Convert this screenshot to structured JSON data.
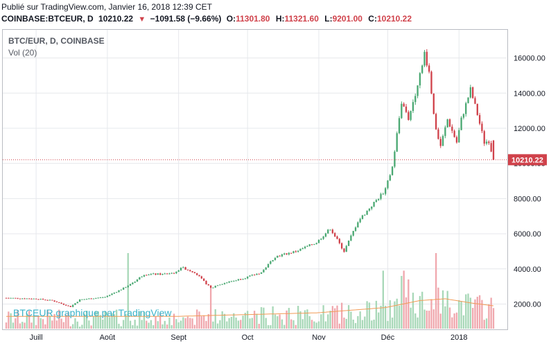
{
  "header": {
    "published": "Publié sur TradingView.com, Janvier 16, 2018 12:39 CET",
    "symbol": "COINBASE:BTCEUR, D",
    "last": "10210.22",
    "change_icon": "triangle-down-icon",
    "change": "−1091.58 (−9.66%)",
    "o_label": "O:",
    "o_value": "11301.80",
    "h_label": "H:",
    "h_value": "11321.60",
    "l_label": "L:",
    "l_value": "9201.00",
    "c_label": "C:",
    "c_value": "10210.22"
  },
  "legend": {
    "series": "BTC/EUR, D, COINBASE",
    "volume": "Vol (20)"
  },
  "watermark": "BTCEUR graphique par TradingView",
  "colors": {
    "up": "#4aa872",
    "down": "#d0424b",
    "up_volume": "#a8d8b8",
    "down_volume": "#f0a8ae",
    "volume_ma": "#f29a55",
    "grid": "#e6e8ec",
    "price_line": "#d0424b",
    "price_label_bg": "#d0424b"
  },
  "chart_data": {
    "type": "candlestick",
    "y_axis": {
      "min": 600,
      "max": 17600,
      "ticks": [
        2000,
        4000,
        6000,
        8000,
        10000,
        12000,
        14000,
        16000
      ],
      "tick_labels": [
        "2000.00",
        "4000.00",
        "6000.00",
        "8000.00",
        "10000.00",
        "12000.00",
        "14000.00",
        "16000.00"
      ]
    },
    "x_axis": {
      "labels": [
        "Juill",
        "Août",
        "Sept",
        "Oct",
        "Nov",
        "Déc",
        "2018"
      ],
      "label_dates": [
        "2017-07-01",
        "2017-08-01",
        "2017-09-01",
        "2017-10-01",
        "2017-11-01",
        "2017-12-01",
        "2018-01-01"
      ],
      "start": "2017-06-18",
      "end": "2018-01-16"
    },
    "current_price": 10210.22,
    "current_price_label": "10210.22",
    "price_path": [
      [
        "2017-06-18",
        2350
      ],
      [
        "2017-07-01",
        2300
      ],
      [
        "2017-07-08",
        2200
      ],
      [
        "2017-07-16",
        1850
      ],
      [
        "2017-07-20",
        2250
      ],
      [
        "2017-07-31",
        2400
      ],
      [
        "2017-08-08",
        2900
      ],
      [
        "2017-08-13",
        3300
      ],
      [
        "2017-08-17",
        3700
      ],
      [
        "2017-08-25",
        3700
      ],
      [
        "2017-08-31",
        3800
      ],
      [
        "2017-09-02",
        4100
      ],
      [
        "2017-09-08",
        3800
      ],
      [
        "2017-09-15",
        2900
      ],
      [
        "2017-09-18",
        3100
      ],
      [
        "2017-09-30",
        3500
      ],
      [
        "2017-10-07",
        3800
      ],
      [
        "2017-10-13",
        4700
      ],
      [
        "2017-10-22",
        5000
      ],
      [
        "2017-10-31",
        5500
      ],
      [
        "2017-11-06",
        6300
      ],
      [
        "2017-11-12",
        5000
      ],
      [
        "2017-11-18",
        6700
      ],
      [
        "2017-11-26",
        7900
      ],
      [
        "2017-11-30",
        8500
      ],
      [
        "2017-12-03",
        9800
      ],
      [
        "2017-12-07",
        13500
      ],
      [
        "2017-12-10",
        12500
      ],
      [
        "2017-12-13",
        14000
      ],
      [
        "2017-12-17",
        16300
      ],
      [
        "2017-12-19",
        15200
      ],
      [
        "2017-12-22",
        11800
      ],
      [
        "2017-12-24",
        11000
      ],
      [
        "2017-12-27",
        12500
      ],
      [
        "2017-12-31",
        11200
      ],
      [
        "2018-01-02",
        12500
      ],
      [
        "2018-01-06",
        14200
      ],
      [
        "2018-01-09",
        12800
      ],
      [
        "2018-01-12",
        11200
      ],
      [
        "2018-01-14",
        11300
      ],
      [
        "2018-01-16",
        10210
      ]
    ],
    "volume_ma_path": [
      [
        "2017-06-18",
        1300
      ],
      [
        "2017-08-31",
        1300
      ],
      [
        "2017-10-31",
        1500
      ],
      [
        "2017-11-30",
        1800
      ],
      [
        "2017-12-15",
        2200
      ],
      [
        "2017-12-26",
        2300
      ],
      [
        "2018-01-07",
        2050
      ],
      [
        "2018-01-16",
        1900
      ]
    ],
    "volume_spikes": [
      [
        "2017-08-10",
        4900
      ],
      [
        "2017-09-15",
        2900
      ],
      [
        "2017-12-08",
        3900
      ],
      [
        "2017-12-07",
        3600
      ],
      [
        "2017-12-10",
        3400
      ],
      [
        "2017-12-22",
        4900
      ],
      [
        "2017-11-29",
        3900
      ],
      [
        "2017-12-16",
        2700
      ]
    ]
  }
}
